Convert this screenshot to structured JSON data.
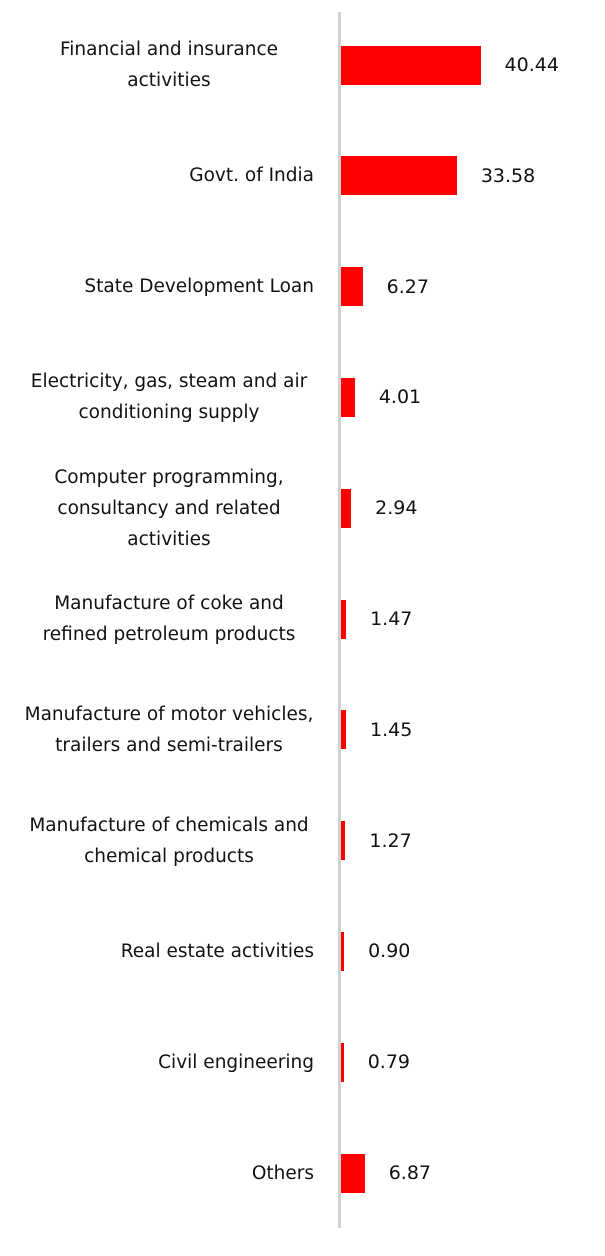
{
  "chart_data": {
    "type": "bar",
    "orientation": "horizontal",
    "categories": [
      "Financial and insurance activities",
      "Govt. of India",
      "State Development Loan",
      "Electricity, gas, steam and air conditioning supply",
      "Computer programming, consultancy and related activities",
      "Manufacture of coke and refined petroleum products",
      "Manufacture of motor vehicles, trailers and semi-trailers",
      "Manufacture of chemicals and chemical products",
      "Real estate activities",
      "Civil engineering",
      "Others"
    ],
    "values": [
      40.44,
      33.58,
      6.27,
      4.01,
      2.94,
      1.47,
      1.45,
      1.27,
      0.9,
      0.79,
      6.87
    ],
    "value_labels": [
      "40.44",
      "33.58",
      "6.27",
      "4.01",
      "2.94",
      "1.47",
      "1.45",
      "1.27",
      "0.90",
      "0.79",
      "6.87"
    ],
    "color": "#ff0000"
  }
}
